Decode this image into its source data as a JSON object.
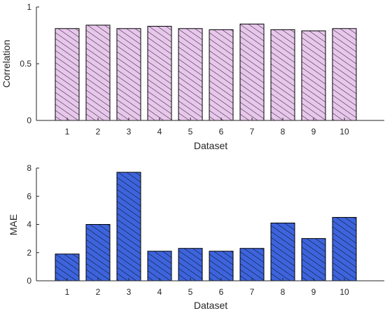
{
  "chart_data": [
    {
      "type": "bar",
      "title": "",
      "xlabel": "Dataset",
      "ylabel": "Correlation",
      "categories": [
        "1",
        "2",
        "3",
        "4",
        "5",
        "6",
        "7",
        "8",
        "9",
        "10"
      ],
      "values": [
        0.81,
        0.84,
        0.81,
        0.83,
        0.81,
        0.8,
        0.85,
        0.8,
        0.79,
        0.81
      ],
      "ylim": [
        0,
        1
      ],
      "yticks": [
        "0",
        "0.5",
        "1"
      ],
      "ytick_values": [
        0,
        0.5,
        1
      ],
      "bar_color": "#e8c7ec",
      "hatch": "diagonal",
      "grid": false,
      "legend": false
    },
    {
      "type": "bar",
      "title": "",
      "xlabel": "Dataset",
      "ylabel": "MAE",
      "categories": [
        "1",
        "2",
        "3",
        "4",
        "5",
        "6",
        "7",
        "8",
        "9",
        "10"
      ],
      "values": [
        1.9,
        4.0,
        7.7,
        2.1,
        2.3,
        2.1,
        2.3,
        4.1,
        3.0,
        4.5
      ],
      "ylim": [
        0,
        8
      ],
      "yticks": [
        "0",
        "2",
        "4",
        "6",
        "8"
      ],
      "ytick_values": [
        0,
        2,
        4,
        6,
        8
      ],
      "bar_color": "#3d64dc",
      "hatch": "diagonal",
      "grid": false,
      "legend": false
    }
  ]
}
